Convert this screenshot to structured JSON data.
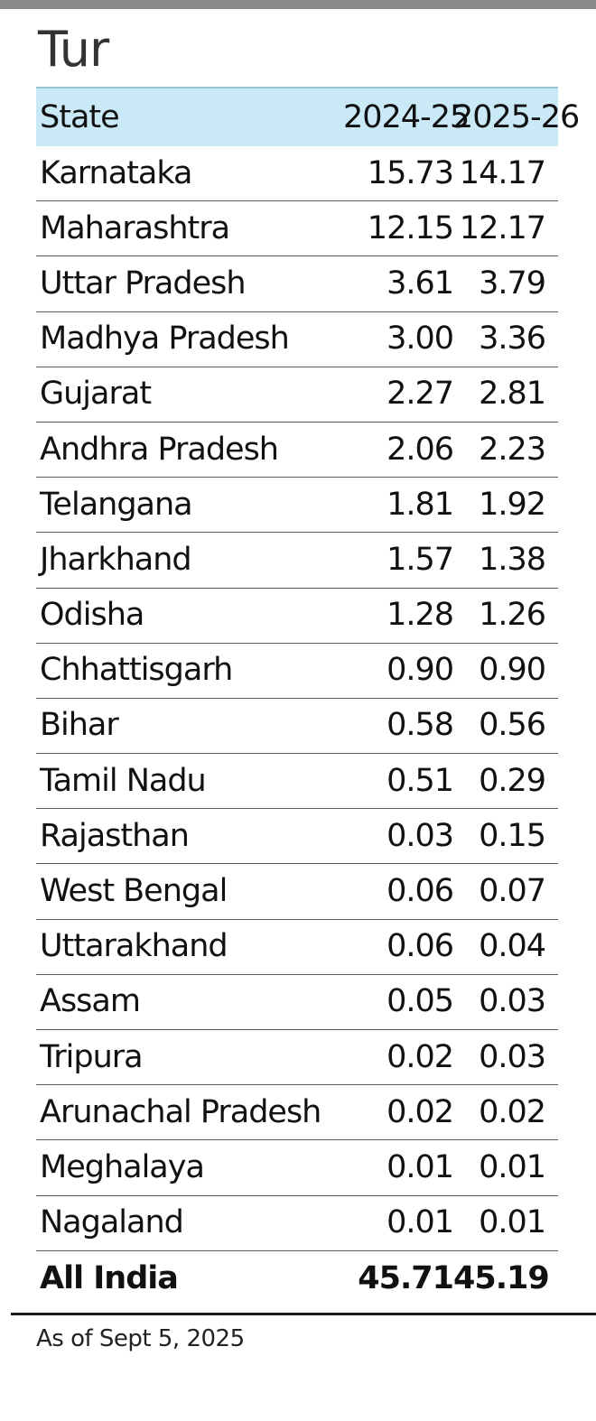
{
  "chart_data": {
    "type": "table",
    "title": "Tur",
    "columns": [
      "State",
      "2024-25",
      "2025-26"
    ],
    "rows": [
      {
        "state": "Karnataka",
        "v2024": "15.73",
        "v2025": "14.17"
      },
      {
        "state": "Maharashtra",
        "v2024": "12.15",
        "v2025": "12.17"
      },
      {
        "state": "Uttar Pradesh",
        "v2024": "3.61",
        "v2025": "3.79"
      },
      {
        "state": "Madhya Pradesh",
        "v2024": "3.00",
        "v2025": "3.36"
      },
      {
        "state": "Gujarat",
        "v2024": "2.27",
        "v2025": "2.81"
      },
      {
        "state": "Andhra Pradesh",
        "v2024": "2.06",
        "v2025": "2.23"
      },
      {
        "state": "Telangana",
        "v2024": "1.81",
        "v2025": "1.92"
      },
      {
        "state": "Jharkhand",
        "v2024": "1.57",
        "v2025": "1.38"
      },
      {
        "state": "Odisha",
        "v2024": "1.28",
        "v2025": "1.26"
      },
      {
        "state": "Chhattisgarh",
        "v2024": "0.90",
        "v2025": "0.90"
      },
      {
        "state": "Bihar",
        "v2024": "0.58",
        "v2025": "0.56"
      },
      {
        "state": "Tamil Nadu",
        "v2024": "0.51",
        "v2025": "0.29"
      },
      {
        "state": "Rajasthan",
        "v2024": "0.03",
        "v2025": "0.15"
      },
      {
        "state": "West Bengal",
        "v2024": "0.06",
        "v2025": "0.07"
      },
      {
        "state": "Uttarakhand",
        "v2024": "0.06",
        "v2025": "0.04"
      },
      {
        "state": "Assam",
        "v2024": "0.05",
        "v2025": "0.03"
      },
      {
        "state": "Tripura",
        "v2024": "0.02",
        "v2025": "0.03"
      },
      {
        "state": "Arunachal Pradesh",
        "v2024": "0.02",
        "v2025": "0.02"
      },
      {
        "state": "Meghalaya",
        "v2024": "0.01",
        "v2025": "0.01"
      },
      {
        "state": "Nagaland",
        "v2024": "0.01",
        "v2025": "0.01"
      }
    ],
    "total": {
      "state": "All India",
      "v2024": "45.71",
      "v2025": "45.19"
    },
    "footnote": "As of Sept 5, 2025"
  },
  "colors": {
    "header_bg": "#c9e9f7",
    "top_bar": "#8a8a8a"
  }
}
